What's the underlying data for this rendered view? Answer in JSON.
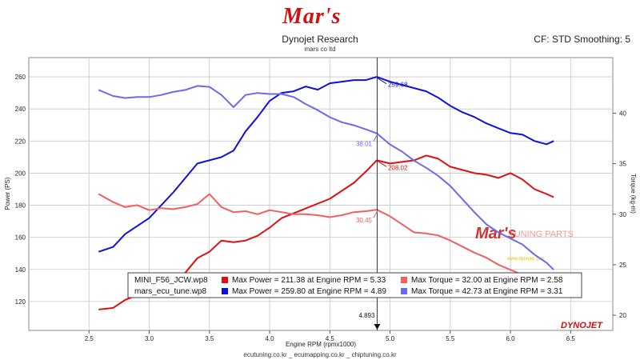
{
  "header": {
    "logo": "Mar's",
    "title": "Dynojet Research",
    "subtitle": "mars co ltd",
    "cf": "CF: STD Smoothing: 5"
  },
  "footer": "ecutuning.co.kr _ ecumapping.co.kr _ chiptuning.co.kr",
  "watermark": {
    "brand": "Mar's",
    "text": "TUNING PARTS",
    "small": "www.dynojet.com"
  },
  "brand_mark": "DYNOJET",
  "colors": {
    "red": "#e01010",
    "lightred": "#f06060",
    "blue": "#1010d8",
    "lightblue": "#6a6af0",
    "plotbg": "#ffffff",
    "grid": "#c8c8c8"
  },
  "chart_data": {
    "type": "line",
    "xlabel": "Engine RPM (rpmx1000)",
    "ylabel_left": "Power (PS)",
    "ylabel_right": "Torque (kg-m)",
    "xlim": [
      2.0,
      6.85
    ],
    "ylim_left": [
      102,
      272
    ],
    "ylim_right": [
      18.5,
      45.5
    ],
    "x_ticks": [
      2.5,
      3.0,
      3.5,
      4.0,
      4.5,
      5.0,
      5.5,
      6.0,
      6.5
    ],
    "x_tick_labels": [
      "2.5",
      "3.0",
      "3.5",
      "4.0",
      "4.5",
      "5.0",
      "5.5",
      "6.0",
      "6.5"
    ],
    "y_ticks_left": [
      120,
      140,
      160,
      180,
      200,
      220,
      240,
      260
    ],
    "y_ticks_right": [
      20,
      25,
      30,
      35,
      40
    ],
    "grid": true,
    "cursor": {
      "x": 4.893,
      "label": "4.893"
    },
    "series": [
      {
        "name": "MINI_F56_JCW.wp8 Power",
        "axis": "left",
        "color": "#e01010",
        "x": [
          2.58,
          2.7,
          2.8,
          2.9,
          3.0,
          3.1,
          3.2,
          3.3,
          3.4,
          3.5,
          3.6,
          3.7,
          3.8,
          3.9,
          4.0,
          4.1,
          4.2,
          4.3,
          4.4,
          4.5,
          4.6,
          4.7,
          4.8,
          4.89,
          5.0,
          5.1,
          5.2,
          5.3,
          5.4,
          5.5,
          5.6,
          5.7,
          5.8,
          5.9,
          6.0,
          6.1,
          6.2,
          6.3,
          6.36
        ],
        "y": [
          115,
          116,
          121,
          124,
          127,
          131,
          134,
          138,
          147,
          151,
          158,
          157,
          158,
          161,
          166,
          172,
          175,
          178,
          181,
          184,
          189,
          194,
          201,
          208,
          206,
          207,
          208,
          211,
          209,
          204,
          202,
          200,
          199,
          197,
          200,
          196,
          190,
          187,
          185
        ]
      },
      {
        "name": "mars_ecu_tune.wp8 Power",
        "axis": "left",
        "color": "#1010d8",
        "x": [
          2.58,
          2.7,
          2.8,
          2.9,
          3.0,
          3.1,
          3.2,
          3.3,
          3.4,
          3.5,
          3.6,
          3.7,
          3.8,
          3.9,
          4.0,
          4.1,
          4.2,
          4.3,
          4.4,
          4.5,
          4.6,
          4.7,
          4.8,
          4.89,
          5.0,
          5.1,
          5.2,
          5.3,
          5.4,
          5.5,
          5.6,
          5.7,
          5.8,
          5.9,
          6.0,
          6.1,
          6.2,
          6.3,
          6.36
        ],
        "y": [
          151,
          154,
          162,
          167,
          172,
          180,
          188,
          197,
          206,
          208,
          210,
          214,
          226,
          235,
          245,
          250,
          251,
          254,
          252,
          256,
          257,
          258,
          258,
          260,
          257,
          255,
          253,
          251,
          247,
          242,
          238,
          235,
          231,
          228,
          225,
          224,
          220,
          218,
          220
        ]
      },
      {
        "name": "MINI_F56_JCW.wp8 Torque",
        "axis": "right",
        "color": "#f06060",
        "x": [
          2.58,
          2.7,
          2.8,
          2.9,
          3.0,
          3.1,
          3.2,
          3.3,
          3.4,
          3.5,
          3.6,
          3.7,
          3.8,
          3.9,
          4.0,
          4.1,
          4.2,
          4.3,
          4.4,
          4.5,
          4.6,
          4.7,
          4.8,
          4.89,
          5.0,
          5.1,
          5.2,
          5.3,
          5.4,
          5.5,
          5.6,
          5.7,
          5.8,
          5.9,
          6.0,
          6.1,
          6.2,
          6.3,
          6.36
        ],
        "y": [
          32.0,
          31.2,
          30.7,
          30.9,
          30.4,
          30.6,
          30.5,
          30.7,
          31.0,
          32.0,
          30.7,
          30.2,
          30.3,
          30.0,
          30.4,
          30.2,
          30.0,
          30.0,
          29.9,
          29.7,
          29.9,
          30.2,
          30.3,
          30.45,
          29.8,
          29.0,
          28.2,
          28.1,
          27.9,
          27.4,
          26.8,
          26.2,
          25.7,
          25.0,
          24.5,
          24.0,
          23.3,
          22.5,
          21.9
        ]
      },
      {
        "name": "mars_ecu_tune.wp8 Torque",
        "axis": "right",
        "color": "#6a6af0",
        "x": [
          2.58,
          2.7,
          2.8,
          2.9,
          3.0,
          3.1,
          3.2,
          3.3,
          3.4,
          3.5,
          3.6,
          3.7,
          3.8,
          3.9,
          4.0,
          4.1,
          4.2,
          4.3,
          4.4,
          4.5,
          4.6,
          4.7,
          4.8,
          4.89,
          5.0,
          5.1,
          5.2,
          5.3,
          5.4,
          5.5,
          5.6,
          5.7,
          5.8,
          5.9,
          6.0,
          6.1,
          6.2,
          6.3,
          6.36
        ],
        "y": [
          42.3,
          41.7,
          41.5,
          41.6,
          41.6,
          41.8,
          42.1,
          42.3,
          42.7,
          42.6,
          41.8,
          40.6,
          41.8,
          42.0,
          41.9,
          41.9,
          41.6,
          40.9,
          40.3,
          39.6,
          39.1,
          38.8,
          38.4,
          38.0,
          36.9,
          36.2,
          35.3,
          34.6,
          33.8,
          32.8,
          31.5,
          30.2,
          29.0,
          28.2,
          27.6,
          27.0,
          26.0,
          25.2,
          24.5
        ]
      }
    ],
    "point_labels": [
      {
        "text": "259.68",
        "x": 4.89,
        "y": 259.68,
        "axis": "left",
        "color": "#1010d8"
      },
      {
        "text": "208.02",
        "x": 4.89,
        "y": 208.02,
        "axis": "left",
        "color": "#e01010"
      },
      {
        "text": "38.01",
        "x": 4.89,
        "y": 38.01,
        "axis": "right",
        "color": "#6a6af0"
      },
      {
        "text": "30.45",
        "x": 4.89,
        "y": 30.45,
        "axis": "right",
        "color": "#f06060"
      }
    ],
    "legend": {
      "position": "bottom-left",
      "rows": [
        {
          "file": "MINI_F56_JCW.wp8",
          "power_color": "#e01010",
          "torque_color": "#f06060",
          "power_text": "Max Power = 211.38 at Engine RPM = 5.33",
          "torque_text": "Max Torque = 32.00 at Engine RPM = 2.58"
        },
        {
          "file": "mars_ecu_tune.wp8",
          "power_color": "#1010d8",
          "torque_color": "#6a6af0",
          "power_text": "Max Power = 259.80 at Engine RPM = 4.89",
          "torque_text": "Max Torque = 42.73 at Engine RPM = 3.31"
        }
      ]
    }
  }
}
